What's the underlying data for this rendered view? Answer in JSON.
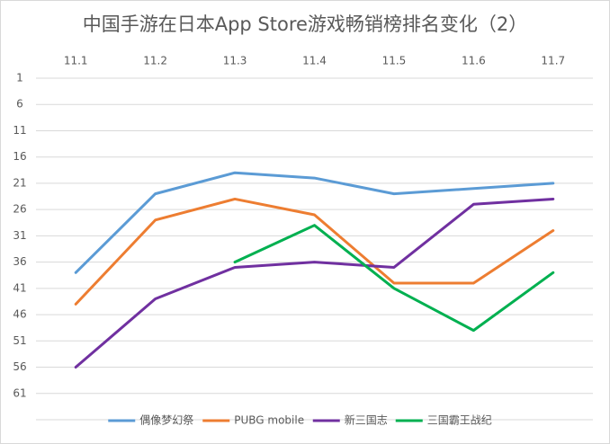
{
  "chart_data": {
    "type": "line",
    "title": "中国手游在日本App Store游戏畅销榜排名变化（2）",
    "categories": [
      "11.1",
      "11.2",
      "11.3",
      "11.4",
      "11.5",
      "11.6",
      "11.7"
    ],
    "series": [
      {
        "name": "偶像梦幻祭",
        "color": "#5b9bd5",
        "values": [
          38,
          23,
          19,
          20,
          23,
          22,
          21
        ]
      },
      {
        "name": "PUBG mobile",
        "color": "#ed7d31",
        "values": [
          44,
          28,
          24,
          27,
          40,
          40,
          30
        ]
      },
      {
        "name": "新三国志",
        "color": "#7030a0",
        "values": [
          56,
          43,
          37,
          36,
          37,
          25,
          24
        ]
      },
      {
        "name": "三国霸王战纪",
        "color": "#00b050",
        "values": [
          null,
          null,
          36,
          29,
          41,
          49,
          38
        ]
      }
    ],
    "ylim": [
      1,
      66
    ],
    "yticks": [
      1,
      6,
      11,
      16,
      21,
      26,
      31,
      36,
      41,
      46,
      51,
      56,
      61
    ],
    "y_inverted": true,
    "grid": true,
    "legend": "bottom"
  }
}
